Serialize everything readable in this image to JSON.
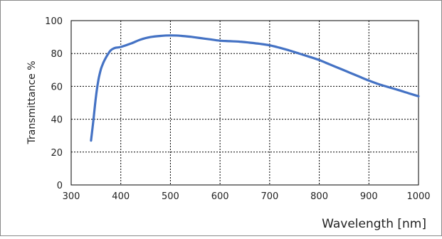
{
  "chart_data": {
    "type": "line",
    "title": "",
    "xlabel": "Wavelength [nm]",
    "ylabel": "Transmittance %",
    "xlim": [
      300,
      1000
    ],
    "ylim": [
      0,
      100
    ],
    "xticks": [
      300,
      400,
      500,
      600,
      700,
      800,
      900,
      1000
    ],
    "yticks": [
      0,
      20,
      40,
      60,
      80,
      100
    ],
    "grid": true,
    "legend": "none",
    "series": [
      {
        "color": "#4472C4",
        "x": [
          340,
          345,
          350,
          355,
          360,
          365,
          370,
          375,
          380,
          385,
          390,
          400,
          420,
          440,
          460,
          480,
          500,
          520,
          540,
          560,
          580,
          600,
          620,
          640,
          660,
          680,
          700,
          720,
          740,
          760,
          780,
          800,
          820,
          840,
          860,
          880,
          900,
          920,
          940,
          960,
          980,
          1000
        ],
        "y": [
          27,
          40,
          54,
          64,
          70.5,
          74.5,
          77.5,
          80,
          82,
          83,
          83.5,
          84,
          86,
          88.5,
          90,
          90.7,
          91,
          90.8,
          90.2,
          89.4,
          88.6,
          87.8,
          87.5,
          87.2,
          86.6,
          85.9,
          85,
          83.5,
          81.8,
          79.9,
          78,
          76,
          73.5,
          71,
          68.5,
          66,
          63.5,
          61.3,
          59.5,
          57.7,
          55.8,
          54
        ]
      }
    ]
  }
}
